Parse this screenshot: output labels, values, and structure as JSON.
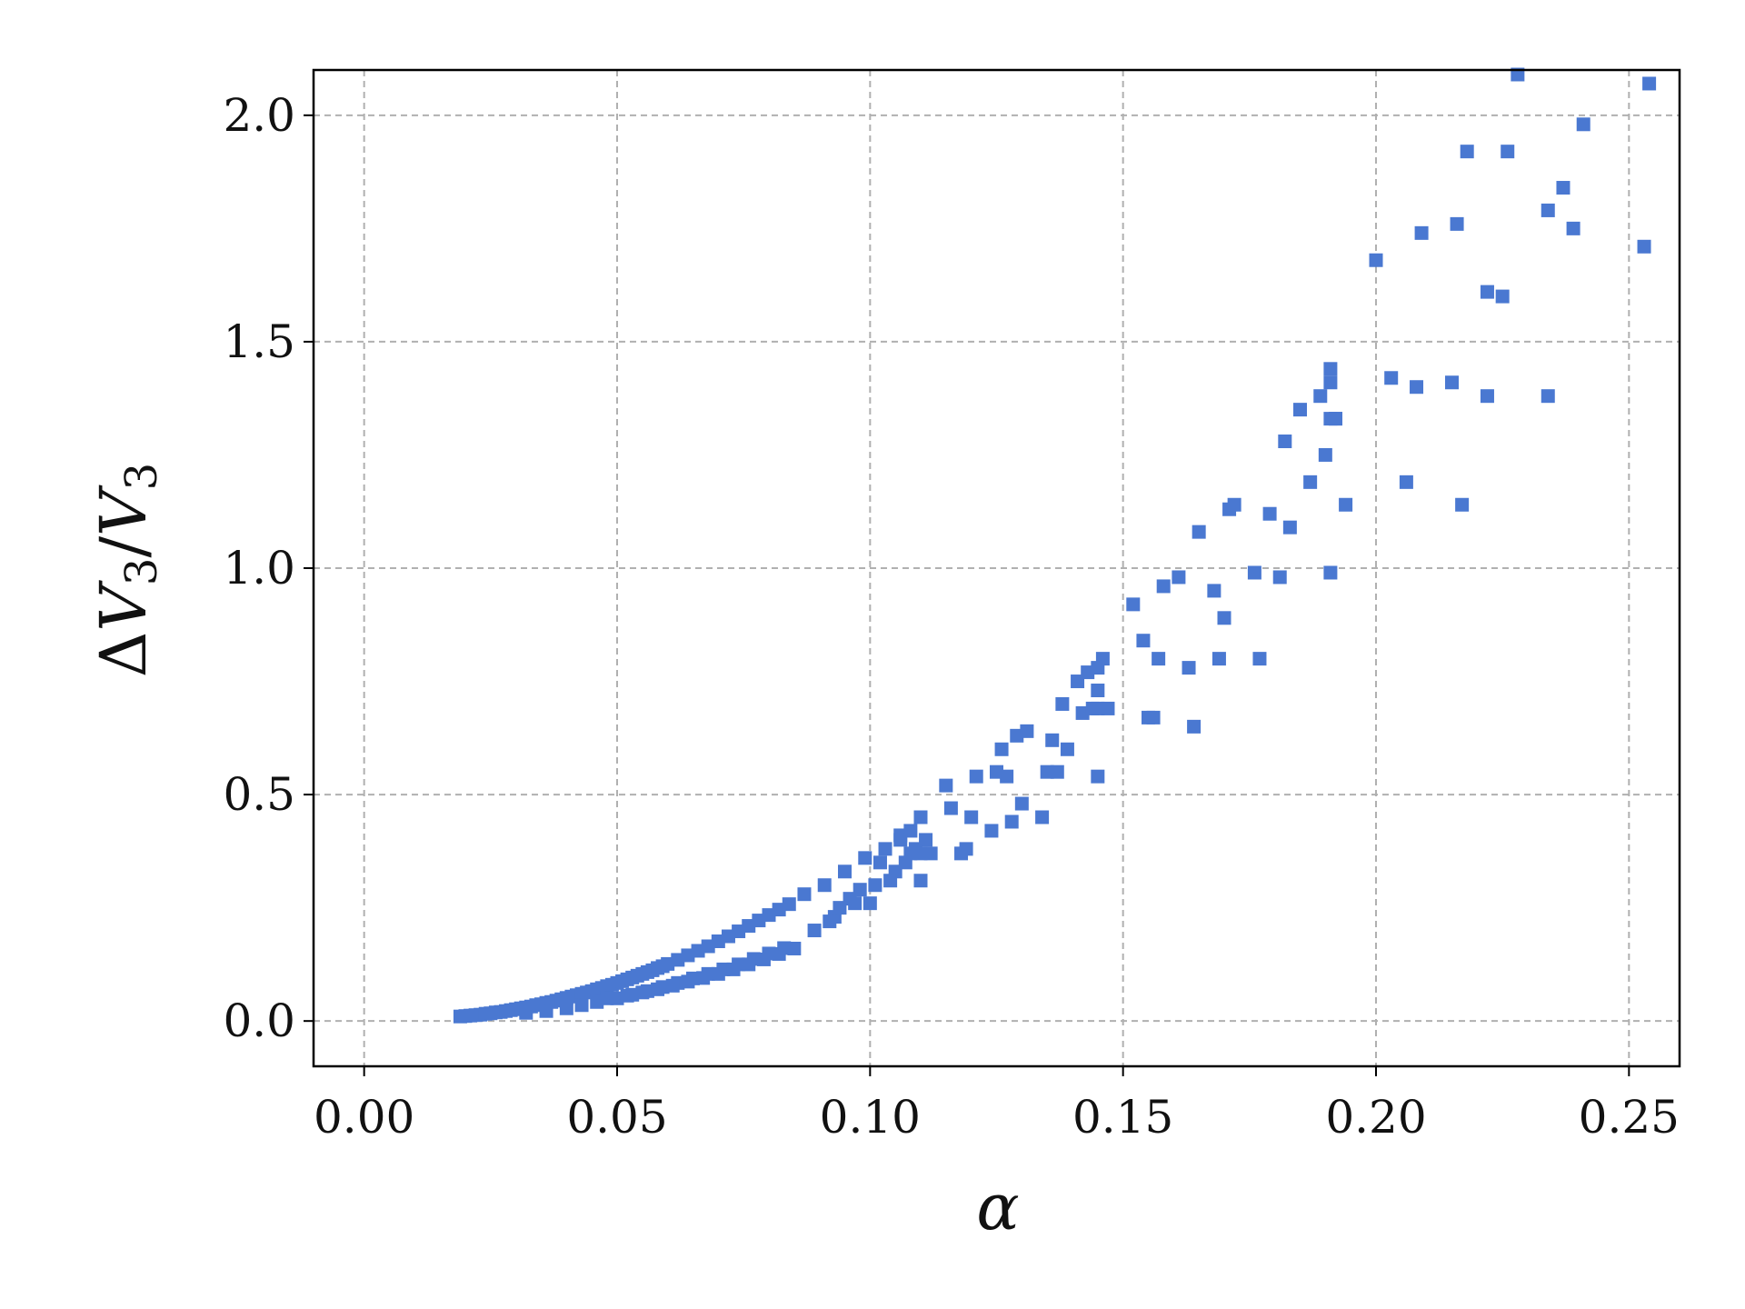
{
  "chart_data": {
    "type": "scatter",
    "title": "",
    "xlabel": "α",
    "ylabel_parts": {
      "delta": "Δ",
      "v1": "V",
      "sub1": "3",
      "slash": "/",
      "v2": "V",
      "sub2": "3"
    },
    "xlim": [
      -0.01,
      0.26
    ],
    "ylim": [
      -0.1,
      2.1
    ],
    "xticks": [
      0.0,
      0.05,
      0.1,
      0.15,
      0.2,
      0.25
    ],
    "xtick_labels": [
      "0.00",
      "0.05",
      "0.10",
      "0.15",
      "0.20",
      "0.25"
    ],
    "yticks": [
      0.0,
      0.5,
      1.0,
      1.5,
      2.0
    ],
    "ytick_labels": [
      "0.0",
      "0.5",
      "1.0",
      "1.5",
      "2.0"
    ],
    "grid": true,
    "legend": "none",
    "marker": "square",
    "color": "#4a78d1",
    "grid_color": "#b0b0b0",
    "series": [
      {
        "x": [
          0.019,
          0.02,
          0.021,
          0.022,
          0.023,
          0.024,
          0.025,
          0.026,
          0.027,
          0.028,
          0.029,
          0.03,
          0.031,
          0.032,
          0.033,
          0.034,
          0.035,
          0.036,
          0.037,
          0.038,
          0.039,
          0.04,
          0.041,
          0.042,
          0.043,
          0.044,
          0.045,
          0.046,
          0.047,
          0.048,
          0.049,
          0.05,
          0.051,
          0.052,
          0.053,
          0.054,
          0.055,
          0.056,
          0.057,
          0.058,
          0.059,
          0.06,
          0.062,
          0.064,
          0.066,
          0.068,
          0.07,
          0.072,
          0.074,
          0.076,
          0.078,
          0.08,
          0.082,
          0.084,
          0.032,
          0.036,
          0.04,
          0.043,
          0.046,
          0.05,
          0.053,
          0.056,
          0.059,
          0.062,
          0.065,
          0.068,
          0.071,
          0.074,
          0.077,
          0.08,
          0.083,
          0.048,
          0.052,
          0.055,
          0.058,
          0.061,
          0.064,
          0.067,
          0.07,
          0.073,
          0.076,
          0.079,
          0.082,
          0.085,
          0.087,
          0.089,
          0.091,
          0.093,
          0.095,
          0.097,
          0.099,
          0.101,
          0.103,
          0.105,
          0.106,
          0.107,
          0.108,
          0.109,
          0.11,
          0.111,
          0.092,
          0.094,
          0.096,
          0.098,
          0.1,
          0.102,
          0.104,
          0.106,
          0.108,
          0.11,
          0.112,
          0.11,
          0.115,
          0.116,
          0.118,
          0.119,
          0.12,
          0.121,
          0.124,
          0.125,
          0.126,
          0.127,
          0.128,
          0.129,
          0.13,
          0.131,
          0.134,
          0.135,
          0.136,
          0.137,
          0.138,
          0.139,
          0.141,
          0.142,
          0.143,
          0.144,
          0.145,
          0.145,
          0.146,
          0.145,
          0.147,
          0.145,
          0.152,
          0.154,
          0.155,
          0.156,
          0.157,
          0.158,
          0.161,
          0.163,
          0.164,
          0.165,
          0.168,
          0.169,
          0.17,
          0.171,
          0.172,
          0.176,
          0.177,
          0.179,
          0.181,
          0.182,
          0.183,
          0.185,
          0.187,
          0.189,
          0.19,
          0.191,
          0.191,
          0.192,
          0.191,
          0.192,
          0.194,
          0.191,
          0.2,
          0.203,
          0.206,
          0.208,
          0.209,
          0.215,
          0.216,
          0.217,
          0.218,
          0.222,
          0.222,
          0.225,
          0.226,
          0.228,
          0.234,
          0.234,
          0.237,
          0.239,
          0.241,
          0.253,
          0.254
        ],
        "y": [
          0.01,
          0.011,
          0.012,
          0.013,
          0.014,
          0.016,
          0.017,
          0.019,
          0.02,
          0.022,
          0.024,
          0.026,
          0.028,
          0.03,
          0.032,
          0.035,
          0.037,
          0.04,
          0.042,
          0.045,
          0.048,
          0.051,
          0.054,
          0.057,
          0.06,
          0.063,
          0.066,
          0.07,
          0.073,
          0.077,
          0.08,
          0.084,
          0.088,
          0.092,
          0.096,
          0.1,
          0.104,
          0.108,
          0.112,
          0.117,
          0.121,
          0.126,
          0.135,
          0.145,
          0.155,
          0.165,
          0.176,
          0.187,
          0.198,
          0.21,
          0.222,
          0.234,
          0.246,
          0.258,
          0.018,
          0.022,
          0.028,
          0.035,
          0.042,
          0.05,
          0.058,
          0.066,
          0.075,
          0.084,
          0.094,
          0.104,
          0.114,
          0.125,
          0.137,
          0.149,
          0.161,
          0.05,
          0.056,
          0.063,
          0.07,
          0.078,
          0.087,
          0.095,
          0.104,
          0.114,
          0.125,
          0.136,
          0.148,
          0.16,
          0.28,
          0.2,
          0.3,
          0.23,
          0.33,
          0.26,
          0.36,
          0.3,
          0.38,
          0.33,
          0.41,
          0.35,
          0.42,
          0.38,
          0.45,
          0.4,
          0.22,
          0.25,
          0.27,
          0.29,
          0.26,
          0.35,
          0.31,
          0.4,
          0.37,
          0.37,
          0.37,
          0.31,
          0.52,
          0.47,
          0.37,
          0.38,
          0.45,
          0.54,
          0.42,
          0.55,
          0.6,
          0.54,
          0.44,
          0.63,
          0.48,
          0.64,
          0.45,
          0.55,
          0.62,
          0.55,
          0.7,
          0.6,
          0.75,
          0.68,
          0.77,
          0.69,
          0.54,
          0.73,
          0.8,
          0.78,
          0.69,
          0.69,
          0.92,
          0.84,
          0.67,
          0.67,
          0.8,
          0.96,
          0.98,
          0.78,
          0.65,
          1.08,
          0.95,
          0.8,
          0.89,
          1.13,
          1.14,
          0.99,
          0.8,
          1.12,
          0.98,
          1.28,
          1.09,
          1.35,
          1.19,
          1.38,
          1.25,
          1.44,
          1.41,
          1.33,
          1.33,
          1.33,
          1.14,
          0.99,
          1.68,
          1.42,
          1.19,
          1.4,
          1.74,
          1.41,
          1.76,
          1.14,
          1.92,
          1.61,
          1.38,
          1.6,
          1.92,
          2.09,
          1.38,
          1.79,
          1.84,
          1.75,
          1.98,
          1.71,
          2.07
        ]
      }
    ]
  }
}
